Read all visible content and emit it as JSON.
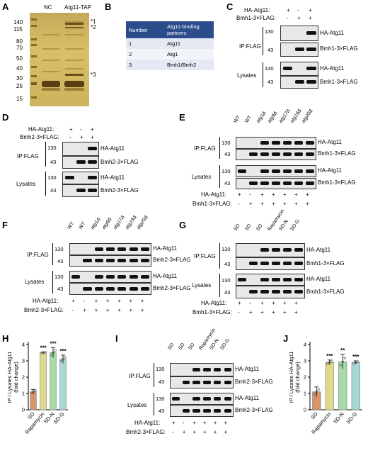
{
  "A": {
    "letter": "A",
    "lanes": [
      "NC",
      "Atg11-TAP"
    ],
    "markers": [
      "140",
      "115",
      "80",
      "70",
      "50",
      "40",
      "30",
      "25",
      "15"
    ],
    "bands": [
      "1",
      "2",
      "3"
    ]
  },
  "B": {
    "letter": "B",
    "header": [
      "Number",
      "Atg11-binding partners"
    ],
    "rows": [
      [
        "1",
        "Atg11"
      ],
      [
        "2",
        "Atg1"
      ],
      [
        "3",
        "Bmh1/Bmh2"
      ]
    ]
  },
  "C": {
    "letter": "C",
    "row_labels": [
      "HA-Atg11:",
      "Bmh1-3×FLAG:"
    ],
    "signs": [
      [
        "+",
        "-",
        "+"
      ],
      [
        "-",
        "+",
        "+"
      ]
    ],
    "ip": "IP:FLAG",
    "lys": "Lysates",
    "mw": [
      "130",
      "43",
      "130",
      "43"
    ],
    "bands": [
      "HA-Atg11",
      "Bmh1-3×FLAG",
      "HA-Atg11",
      "Bmh1-3×FLAG"
    ]
  },
  "D": {
    "letter": "D",
    "row_labels": [
      "HA-Atg11:",
      "Bmh2-3×FLAG:"
    ],
    "signs": [
      [
        "+",
        "-",
        "+"
      ],
      [
        "-",
        "+",
        "+"
      ]
    ],
    "ip": "IP:FLAG",
    "lys": "Lysates",
    "mw": [
      "130",
      "43",
      "130",
      "43"
    ],
    "bands": [
      "HA-Atg11",
      "Bmh2-3×FLAG",
      "HA-Atg11",
      "Bmh2-3×FLAG"
    ]
  },
  "E": {
    "letter": "E",
    "lanes": [
      "WT",
      "WT",
      "atg1Δ",
      "atg9Δ",
      "atg17Δ",
      "atg19Δ",
      "atg20Δ"
    ],
    "ip": "IP:FLAG",
    "lys": "Lysates",
    "mw": [
      "130",
      "43",
      "130",
      "43"
    ],
    "bands": [
      "HA-Atg11",
      "Bmh1-3×FLAG",
      "HA-Atg11",
      "Bmh1-3×FLAG"
    ],
    "row_labels": [
      "HA-Atg11:",
      "Bmh1-3×FLAG:"
    ],
    "signs": [
      [
        "+",
        "-",
        "+",
        "+",
        "+",
        "+",
        "+"
      ],
      [
        "-",
        "+",
        "+",
        "+",
        "+",
        "+",
        "+"
      ]
    ]
  },
  "F": {
    "letter": "F",
    "lanes": [
      "WT",
      "WT",
      "atg1Δ",
      "atg9Δ",
      "atg17Δ",
      "atg19Δ",
      "atg20Δ"
    ],
    "ip": "IP:FLAG",
    "lys": "Lysates",
    "mw": [
      "130",
      "43",
      "130",
      "43"
    ],
    "bands": [
      "HA-Atg11",
      "Bmh2-3×FLAG",
      "HA-Atg11",
      "Bmh2-3×FLAG"
    ],
    "row_labels": [
      "HA-Atg11:",
      "Bmh2-3×FLAG:"
    ],
    "signs": [
      [
        "+",
        "-",
        "+",
        "+",
        "+",
        "+",
        "+"
      ],
      [
        "-",
        "+",
        "+",
        "+",
        "+",
        "+",
        "+"
      ]
    ]
  },
  "G": {
    "letter": "G",
    "lanes": [
      "SD",
      "SD",
      "SD",
      "Rapamycin",
      "SD-N",
      "SD-G"
    ],
    "ip": "IP:FLAG",
    "lys": "Lysates",
    "mw": [
      "130",
      "43",
      "130",
      "43"
    ],
    "bands": [
      "HA-Atg11",
      "Bmh1-3×FLAG",
      "HA-Atg11",
      "Bmh1-3×FLAG"
    ],
    "row_labels": [
      "HA-Atg11:",
      "Bmh1-3×FLAG:"
    ],
    "signs": [
      [
        "+",
        "-",
        "+",
        "+",
        "+",
        "+"
      ],
      [
        "-",
        "+",
        "+",
        "+",
        "+",
        "+"
      ]
    ]
  },
  "I": {
    "letter": "I",
    "lanes": [
      "SD",
      "SD",
      "SD",
      "Rapamycin",
      "SD-N",
      "SD-G"
    ],
    "ip": "IP:FLAG",
    "lys": "Lysates",
    "mw": [
      "130",
      "43",
      "130",
      "43"
    ],
    "bands": [
      "HA-Atg11",
      "Bmh2-3×FLAG",
      "HA-Atg11",
      "Bmh2-3×FLAG"
    ],
    "row_labels": [
      "HA-Atg11:",
      "Bmh2-3×FLAG:"
    ],
    "signs": [
      [
        "+",
        "-",
        "+",
        "+",
        "+",
        "+"
      ],
      [
        "-",
        "+",
        "+",
        "+",
        "+",
        "+"
      ]
    ]
  },
  "chart_data": [
    {
      "panel": "H",
      "type": "bar",
      "ylabel": "IP / Lysates HA-Atg11 (fold change)",
      "categories": [
        "SD",
        "Rapamycin",
        "SD-N",
        "SD-G"
      ],
      "values": [
        1.1,
        3.5,
        3.5,
        3.1
      ],
      "errors": [
        0.15,
        0.05,
        0.3,
        0.25
      ],
      "significance": [
        "",
        "***",
        "***",
        "***"
      ],
      "ylim": [
        0,
        4
      ],
      "yticks": [
        "0",
        "1",
        "2",
        "3",
        "4"
      ],
      "colors": [
        "#d9956a",
        "#e0d98a",
        "#a4dba6",
        "#a6d7d5"
      ]
    },
    {
      "panel": "J",
      "type": "bar",
      "ylabel": "IP / Lysates HA-Atg11 (fold change)",
      "categories": [
        "SD",
        "Rapamycin",
        "SD-N",
        "SD-G"
      ],
      "values": [
        1.1,
        2.9,
        2.95,
        2.9
      ],
      "errors": [
        0.3,
        0.15,
        0.45,
        0.1
      ],
      "significance": [
        "",
        "***",
        "**",
        "***"
      ],
      "ylim": [
        0,
        4
      ],
      "yticks": [
        "0",
        "1",
        "2",
        "3",
        "4"
      ],
      "colors": [
        "#d9956a",
        "#e0d98a",
        "#a4dba6",
        "#a6d7d5"
      ]
    }
  ],
  "H_letter": "H",
  "J_letter": "J",
  "colors": {
    "table_header": "#2b4d8c",
    "table_row": "#e4e9f3",
    "gel": "#d3b862"
  }
}
